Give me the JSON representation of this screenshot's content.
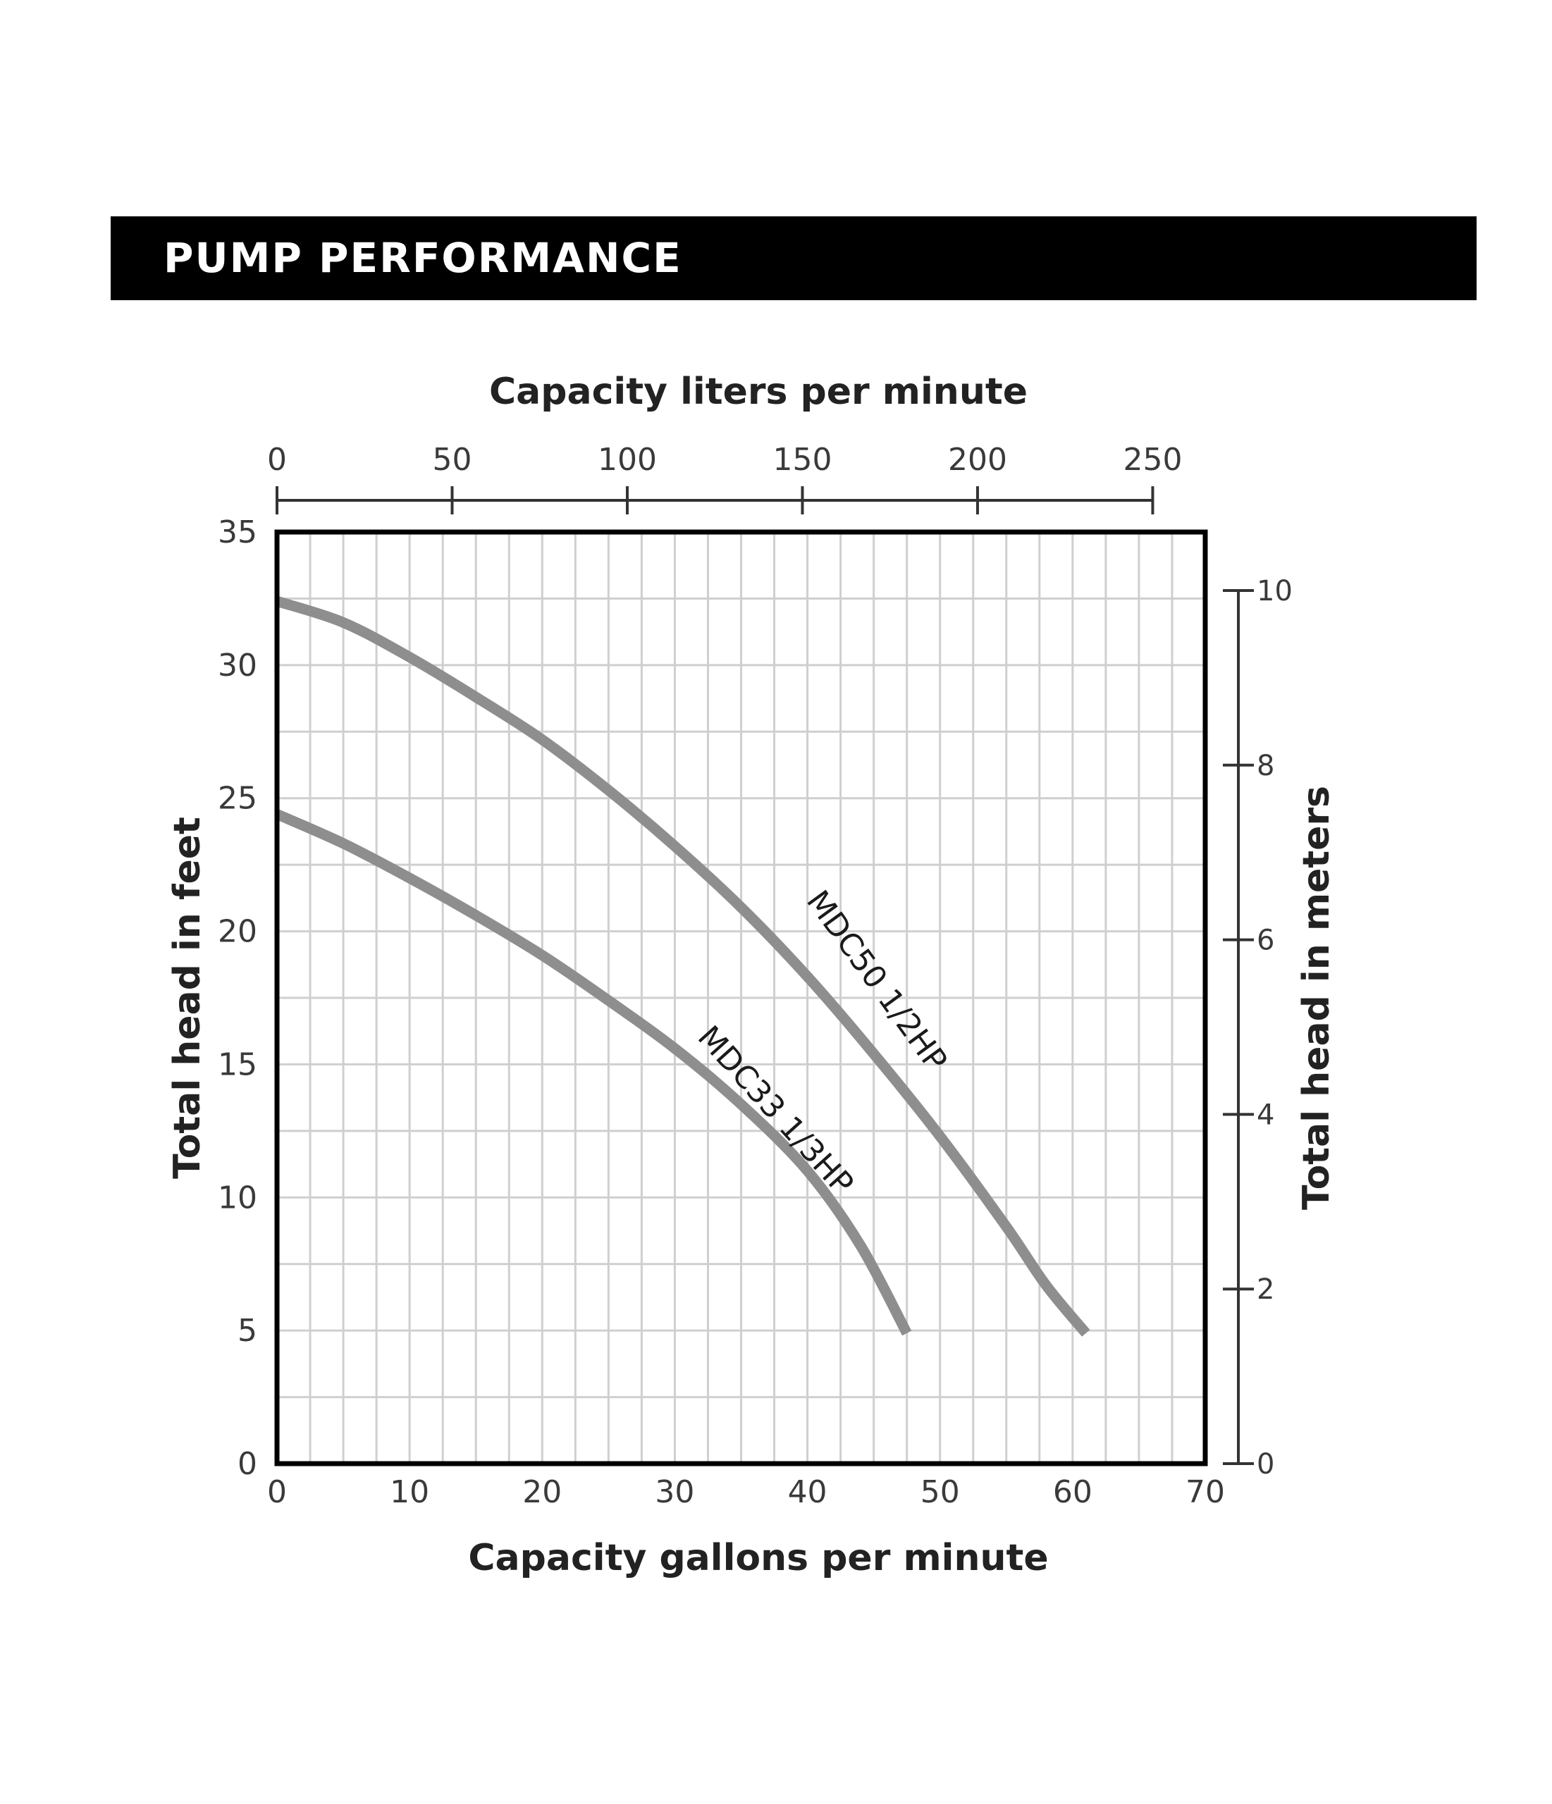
{
  "banner": {
    "title": "PUMP PERFORMANCE"
  },
  "colors": {
    "banner": "#000000",
    "curve": "#8e8e8e",
    "grid": "#cfcfcf",
    "frame": "#000000"
  },
  "chart_data": {
    "type": "line",
    "title": "",
    "xlabel": "Capacity gallons per minute",
    "ylabel": "Total head in feet",
    "x2label": "Capacity liters per minute",
    "y2label": "Total head in meters",
    "xlim": [
      0,
      70
    ],
    "ylim": [
      0,
      35
    ],
    "x2lim": [
      0,
      265
    ],
    "y2lim": [
      0,
      10.67
    ],
    "grid": true,
    "x_ticks": [
      "0",
      "10",
      "20",
      "30",
      "40",
      "50",
      "60",
      "70"
    ],
    "y_ticks": [
      "0",
      "5",
      "10",
      "15",
      "20",
      "25",
      "30",
      "35"
    ],
    "x2_ticks": [
      "0",
      "50",
      "100",
      "150",
      "200",
      "250"
    ],
    "y2_ticks": [
      "0",
      "2",
      "4",
      "6",
      "8",
      "10"
    ],
    "series": [
      {
        "name": "MDC50 1/2HP",
        "x": [
          0,
          5,
          10,
          15,
          20,
          25,
          30,
          35,
          40,
          45,
          50,
          55,
          58,
          61
        ],
        "y": [
          32.4,
          31.6,
          30.3,
          28.8,
          27.2,
          25.3,
          23.2,
          20.9,
          18.3,
          15.4,
          12.3,
          8.9,
          6.7,
          4.9
        ]
      },
      {
        "name": "MDC33 1/3HP",
        "x": [
          0,
          5,
          10,
          15,
          20,
          25,
          30,
          35,
          40,
          44,
          47.5
        ],
        "y": [
          24.4,
          23.3,
          22.0,
          20.6,
          19.1,
          17.4,
          15.6,
          13.5,
          11.0,
          8.2,
          4.9
        ]
      }
    ]
  }
}
